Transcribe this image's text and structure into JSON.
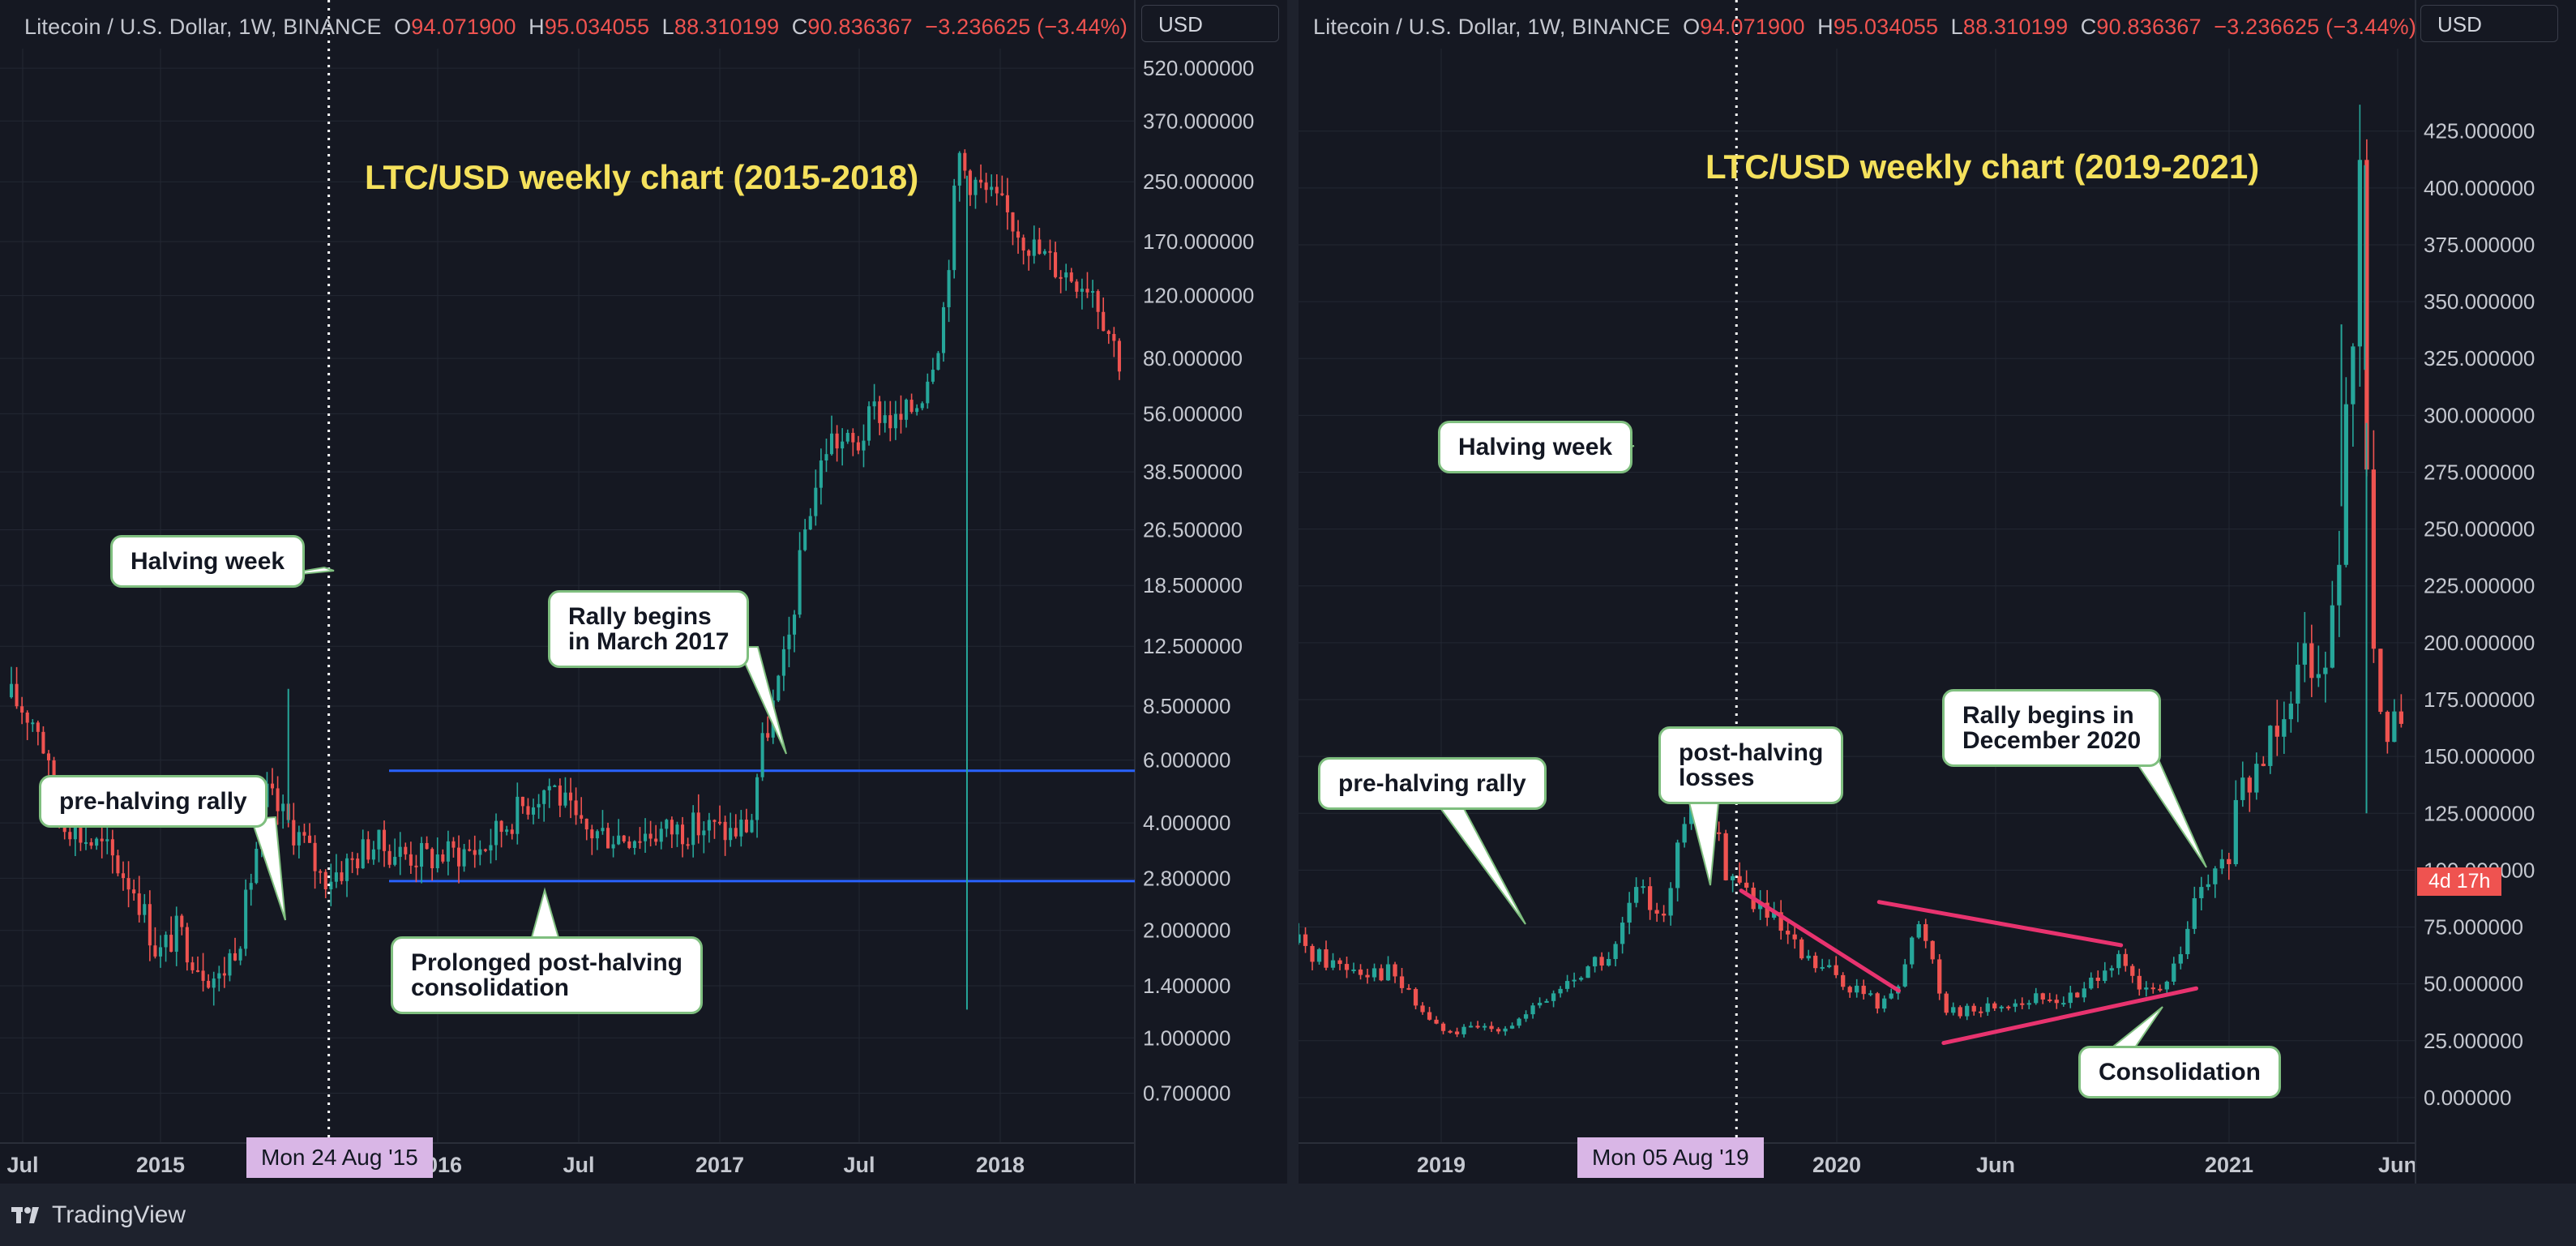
{
  "brand": {
    "name": "TradingView",
    "icon": "tradingview-logo-icon"
  },
  "left_panel": {
    "header": {
      "symbol": "Litecoin / U.S. Dollar, 1W, BINANCE",
      "o_label": "O",
      "o": "94.071900",
      "h_label": "H",
      "h": "95.034055",
      "l_label": "L",
      "l": "88.310199",
      "c_label": "C",
      "c": "90.836367",
      "change": "−3.236625 (−3.44%)"
    },
    "currency": "USD",
    "crosshair_date": "Mon 24 Aug '15",
    "annotations": {
      "halving": "Halving week",
      "pre_halving": "pre-halving rally",
      "rally_line1": "Rally begins",
      "rally_line2": "in March 2017",
      "consolidation_line1": "Prolonged post-halving",
      "consolidation_line2": "consolidation"
    }
  },
  "right_panel": {
    "header": {
      "symbol": "Litecoin / U.S. Dollar, 1W, BINANCE",
      "o_label": "O",
      "o": "94.071900",
      "h_label": "H",
      "h": "95.034055",
      "l_label": "L",
      "l": "88.310199",
      "c_label": "C",
      "c": "90.836367",
      "change": "−3.236625 (−3.44%)"
    },
    "currency": "USD",
    "crosshair_date": "Mon 05 Aug '19",
    "countdown": "4d 17h",
    "annotations": {
      "halving": "Halving week",
      "pre_halving": "pre-halving rally",
      "post_line1": "post-halving",
      "post_line2": "losses",
      "rally_line1": "Rally begins in",
      "rally_line2": "December 2020",
      "consolidation": "Consolidation"
    }
  },
  "colors": {
    "up": "#26a69a",
    "down": "#ef5350",
    "title": "#f5e15c",
    "support_resistance": "#2962ff",
    "trendline": "#e8336f",
    "panel_bg": "#151822"
  },
  "chart_data": [
    {
      "type": "candlestick",
      "title": "LTC/USD weekly chart (2015-2018)",
      "scale": "log",
      "x_ticks": [
        "Jul",
        "2015",
        "2016",
        "Jul",
        "2017",
        "Jul",
        "2018"
      ],
      "y_ticks": [
        "520.000000",
        "370.000000",
        "250.000000",
        "170.000000",
        "120.000000",
        "80.000000",
        "56.000000",
        "38.500000",
        "26.500000",
        "18.500000",
        "12.500000",
        "8.500000",
        "6.000000",
        "4.000000",
        "2.800000",
        "2.000000",
        "1.400000",
        "1.000000",
        "0.700000"
      ],
      "y_tick_values": [
        520,
        370,
        250,
        170,
        120,
        80,
        56,
        38.5,
        26.5,
        18.5,
        12.5,
        8.5,
        6,
        4,
        2.8,
        2,
        1.4,
        1,
        0.7
      ],
      "xlim": [
        2014.5,
        2018.55
      ],
      "ylim": [
        0.6,
        560
      ],
      "halving_date": 2015.646,
      "horizontal_levels": [
        5.6,
        2.75
      ],
      "keypoints": [
        [
          2014.5,
          9
        ],
        [
          2014.6,
          7.5
        ],
        [
          2014.66,
          4.4
        ],
        [
          2014.75,
          3.7
        ],
        [
          2014.85,
          3.3
        ],
        [
          2014.95,
          2.6
        ],
        [
          2015.03,
          1.7
        ],
        [
          2015.1,
          2.0
        ],
        [
          2015.18,
          1.6
        ],
        [
          2015.25,
          1.45
        ],
        [
          2015.33,
          2.0
        ],
        [
          2015.42,
          4.8
        ],
        [
          2015.5,
          4.0
        ],
        [
          2015.55,
          3.6
        ],
        [
          2015.62,
          2.8
        ],
        [
          2015.7,
          3.0
        ],
        [
          2015.8,
          3.5
        ],
        [
          2015.9,
          3.3
        ],
        [
          2016.0,
          3.2
        ],
        [
          2016.2,
          3.4
        ],
        [
          2016.35,
          4.5
        ],
        [
          2016.45,
          5.2
        ],
        [
          2016.55,
          3.8
        ],
        [
          2016.7,
          3.7
        ],
        [
          2016.85,
          3.8
        ],
        [
          2017.0,
          3.9
        ],
        [
          2017.1,
          3.75
        ],
        [
          2017.17,
          4.0
        ],
        [
          2017.2,
          6.0
        ],
        [
          2017.3,
          12
        ],
        [
          2017.37,
          28
        ],
        [
          2017.45,
          48
        ],
        [
          2017.55,
          45
        ],
        [
          2017.62,
          58
        ],
        [
          2017.7,
          52
        ],
        [
          2017.78,
          62
        ],
        [
          2017.86,
          100
        ],
        [
          2017.92,
          300
        ],
        [
          2017.95,
          260
        ],
        [
          2018.0,
          240
        ],
        [
          2018.1,
          200
        ],
        [
          2018.2,
          160
        ],
        [
          2018.3,
          140
        ],
        [
          2018.4,
          130
        ],
        [
          2018.5,
          80
        ]
      ],
      "spikes": [
        [
          2015.5,
          9.5
        ],
        [
          2017.95,
          1.2
        ]
      ]
    },
    {
      "type": "candlestick",
      "title": "LTC/USD weekly chart (2019-2021)",
      "scale": "linear",
      "x_ticks": [
        "2019",
        "2020",
        "Jun",
        "2021",
        "Jun"
      ],
      "y_ticks": [
        "425.000000",
        "400.000000",
        "375.000000",
        "350.000000",
        "325.000000",
        "300.000000",
        "275.000000",
        "250.000000",
        "225.000000",
        "200.000000",
        "175.000000",
        "150.000000",
        "125.000000",
        "100.000000",
        "75.000000",
        "50.000000",
        "25.000000",
        "0.000000"
      ],
      "y_tick_values": [
        425,
        400,
        375,
        350,
        325,
        300,
        275,
        250,
        225,
        200,
        175,
        150,
        125,
        100,
        75,
        50,
        25,
        0
      ],
      "xlim": [
        2018.37,
        2021.48
      ],
      "ylim": [
        -20,
        447
      ],
      "halving_date": 2019.592,
      "trendlines": [
        [
          [
            2019.605,
            91
          ],
          [
            2020.045,
            47
          ]
        ],
        [
          [
            2019.99,
            86
          ],
          [
            2020.665,
            67
          ]
        ],
        [
          [
            2020.17,
            24
          ],
          [
            2020.875,
            48
          ]
        ]
      ],
      "keypoints": [
        [
          2018.37,
          68
        ],
        [
          2018.45,
          60
        ],
        [
          2018.55,
          57
        ],
        [
          2018.63,
          55
        ],
        [
          2018.7,
          40
        ],
        [
          2018.78,
          28
        ],
        [
          2018.86,
          30
        ],
        [
          2018.95,
          32
        ],
        [
          2019.0,
          35
        ],
        [
          2019.1,
          48
        ],
        [
          2019.2,
          60
        ],
        [
          2019.25,
          62
        ],
        [
          2019.3,
          88
        ],
        [
          2019.4,
          85
        ],
        [
          2019.45,
          122
        ],
        [
          2019.5,
          128
        ],
        [
          2019.53,
          115
        ],
        [
          2019.57,
          100
        ],
        [
          2019.62,
          90
        ],
        [
          2019.7,
          75
        ],
        [
          2019.78,
          60
        ],
        [
          2019.85,
          55
        ],
        [
          2019.92,
          48
        ],
        [
          2019.97,
          43
        ],
        [
          2020.0,
          40
        ],
        [
          2020.05,
          55
        ],
        [
          2020.1,
          75
        ],
        [
          2020.13,
          68
        ],
        [
          2020.17,
          40
        ],
        [
          2020.25,
          38
        ],
        [
          2020.35,
          42
        ],
        [
          2020.45,
          43
        ],
        [
          2020.55,
          44
        ],
        [
          2020.62,
          60
        ],
        [
          2020.67,
          58
        ],
        [
          2020.72,
          45
        ],
        [
          2020.8,
          50
        ],
        [
          2020.88,
          88
        ],
        [
          2020.95,
          100
        ],
        [
          2021.0,
          130
        ],
        [
          2021.05,
          145
        ],
        [
          2021.1,
          170
        ],
        [
          2021.15,
          190
        ],
        [
          2021.2,
          200
        ],
        [
          2021.25,
          200
        ],
        [
          2021.28,
          260
        ],
        [
          2021.3,
          300
        ],
        [
          2021.33,
          390
        ],
        [
          2021.36,
          250
        ],
        [
          2021.38,
          160
        ],
        [
          2021.42,
          170
        ],
        [
          2021.46,
          150
        ]
      ],
      "spikes": [
        [
          2021.345,
          410
        ],
        [
          2021.28,
          340
        ],
        [
          2021.35,
          125
        ]
      ]
    }
  ]
}
